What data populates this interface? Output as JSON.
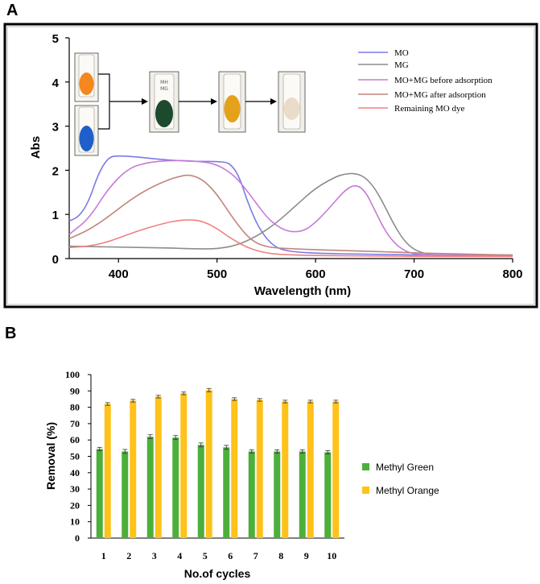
{
  "panels": {
    "a_label": "A",
    "b_label": "B"
  },
  "chart_data": [
    {
      "type": "line",
      "title": "",
      "xlabel": "Wavelength (nm)",
      "ylabel": "Abs",
      "xlim": [
        350,
        800
      ],
      "ylim": [
        0,
        5
      ],
      "xticks": [
        "400",
        "500",
        "600",
        "700",
        "800"
      ],
      "yticks": [
        "0",
        "1",
        "2",
        "3",
        "4",
        "5"
      ],
      "legend_position": "top-right",
      "series": [
        {
          "name": "MO",
          "color": "#7b7be8",
          "x": [
            350,
            360,
            370,
            380,
            390,
            400,
            420,
            440,
            460,
            480,
            500,
            510,
            515,
            520,
            525,
            530,
            540,
            550,
            560,
            570,
            580,
            600,
            650,
            700,
            750,
            800
          ],
          "y": [
            0.85,
            0.95,
            1.3,
            1.95,
            2.3,
            2.33,
            2.3,
            2.25,
            2.22,
            2.2,
            2.2,
            2.18,
            2.1,
            1.95,
            1.7,
            1.35,
            0.8,
            0.45,
            0.25,
            0.18,
            0.15,
            0.12,
            0.1,
            0.08,
            0.08,
            0.08
          ]
        },
        {
          "name": "MG",
          "color": "#8c8c8c",
          "x": [
            350,
            400,
            450,
            480,
            500,
            520,
            540,
            560,
            580,
            600,
            620,
            630,
            640,
            650,
            660,
            670,
            680,
            690,
            700,
            710,
            720,
            740,
            760,
            800
          ],
          "y": [
            0.28,
            0.26,
            0.24,
            0.22,
            0.22,
            0.3,
            0.5,
            0.8,
            1.2,
            1.6,
            1.85,
            1.92,
            1.93,
            1.85,
            1.6,
            1.2,
            0.75,
            0.4,
            0.2,
            0.12,
            0.08,
            0.06,
            0.06,
            0.06
          ]
        },
        {
          "name": "MO+MG before adsorption",
          "color": "#c77ad8",
          "x": [
            350,
            370,
            390,
            410,
            430,
            450,
            470,
            490,
            500,
            510,
            520,
            530,
            540,
            550,
            560,
            570,
            580,
            590,
            600,
            610,
            620,
            630,
            640,
            650,
            660,
            670,
            680,
            690,
            700,
            720,
            750,
            800
          ],
          "y": [
            0.55,
            0.9,
            1.6,
            2.05,
            2.18,
            2.22,
            2.22,
            2.18,
            2.12,
            2.0,
            1.82,
            1.55,
            1.25,
            0.95,
            0.75,
            0.63,
            0.6,
            0.65,
            0.82,
            1.05,
            1.3,
            1.55,
            1.68,
            1.55,
            1.1,
            0.65,
            0.35,
            0.18,
            0.1,
            0.08,
            0.07,
            0.07
          ]
        },
        {
          "name": "MO+MG after adsorption",
          "color": "#c0857a",
          "x": [
            350,
            370,
            390,
            410,
            430,
            450,
            460,
            470,
            480,
            490,
            500,
            510,
            520,
            530,
            540,
            550,
            560,
            580,
            600,
            650,
            700,
            750,
            800
          ],
          "y": [
            0.45,
            0.65,
            0.95,
            1.3,
            1.58,
            1.78,
            1.85,
            1.9,
            1.85,
            1.7,
            1.45,
            1.12,
            0.8,
            0.52,
            0.35,
            0.27,
            0.24,
            0.22,
            0.2,
            0.17,
            0.13,
            0.1,
            0.08
          ]
        },
        {
          "name": "Remaining MO dye",
          "color": "#f08080",
          "x": [
            350,
            370,
            390,
            410,
            430,
            450,
            460,
            470,
            480,
            490,
            500,
            510,
            520,
            530,
            540,
            550,
            560,
            580,
            600,
            650,
            700,
            750,
            800
          ],
          "y": [
            0.25,
            0.28,
            0.38,
            0.55,
            0.7,
            0.82,
            0.86,
            0.88,
            0.87,
            0.8,
            0.68,
            0.52,
            0.38,
            0.26,
            0.18,
            0.13,
            0.1,
            0.08,
            0.07,
            0.06,
            0.05,
            0.05,
            0.05
          ]
        }
      ]
    },
    {
      "type": "bar",
      "title": "",
      "xlabel": "No.of cycles",
      "ylabel": "Removal (%)",
      "ylim": [
        0,
        100
      ],
      "yticks": [
        "0",
        "10",
        "20",
        "30",
        "40",
        "50",
        "60",
        "70",
        "80",
        "90",
        "100"
      ],
      "categories": [
        "1",
        "2",
        "3",
        "4",
        "5",
        "6",
        "7",
        "8",
        "9",
        "10"
      ],
      "legend_position": "right",
      "series": [
        {
          "name": "Methyl Green",
          "color": "#4caf3a",
          "values": [
            54.5,
            53,
            62,
            61.5,
            57,
            55.5,
            53,
            53,
            53,
            52.5
          ],
          "errors": [
            1.0,
            1.2,
            1.2,
            1.2,
            1.2,
            1.2,
            1.0,
            1.0,
            1.0,
            1.0
          ]
        },
        {
          "name": "Methyl Orange",
          "color": "#ffc21a",
          "values": [
            82,
            84,
            86.5,
            88.5,
            90.5,
            85,
            84.5,
            83.5,
            83.5,
            83.5
          ],
          "errors": [
            0.8,
            0.8,
            0.8,
            0.8,
            1.0,
            0.8,
            0.8,
            0.8,
            0.8,
            0.8
          ]
        }
      ]
    }
  ],
  "vials": [
    {
      "name": "orange-vial",
      "liquid": "#f4871e"
    },
    {
      "name": "blue-vial",
      "liquid": "#1f5fc9"
    },
    {
      "name": "mixture-vial",
      "liquid": "#1d4a2c",
      "label": "MH\nMG"
    },
    {
      "name": "yellow-vial",
      "liquid": "#e4a21b"
    },
    {
      "name": "clear-vial",
      "liquid": "#eadcc8"
    }
  ]
}
